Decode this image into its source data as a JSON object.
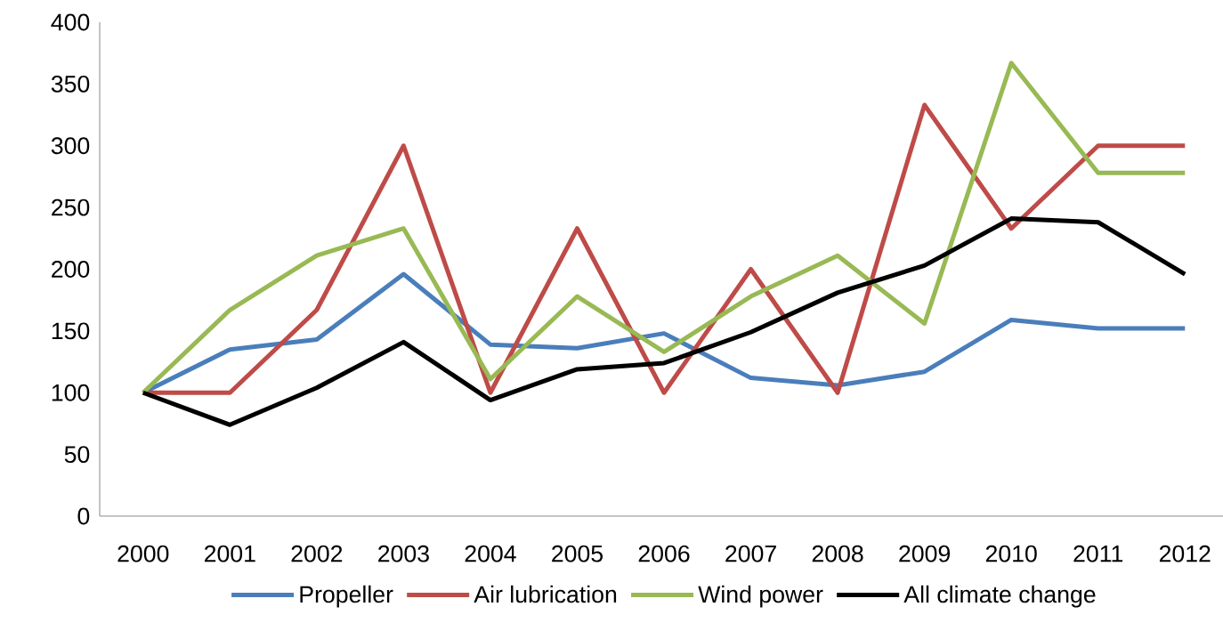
{
  "chart_data": {
    "type": "line",
    "categories": [
      "2000",
      "2001",
      "2002",
      "2003",
      "2004",
      "2005",
      "2006",
      "2007",
      "2008",
      "2009",
      "2010",
      "2011",
      "2012"
    ],
    "series": [
      {
        "name": "Propeller",
        "color": "#4a7ebb",
        "values": [
          100,
          135,
          143,
          196,
          139,
          136,
          148,
          112,
          106,
          117,
          159,
          152,
          152
        ]
      },
      {
        "name": "Air lubrication",
        "color": "#be4b48",
        "values": [
          100,
          100,
          167,
          300,
          100,
          233,
          100,
          200,
          100,
          333,
          233,
          300,
          300
        ]
      },
      {
        "name": "Wind power",
        "color": "#98b954",
        "values": [
          100,
          167,
          211,
          233,
          111,
          178,
          133,
          178,
          211,
          156,
          367,
          278,
          278
        ]
      },
      {
        "name": "All climate change",
        "color": "#000000",
        "values": [
          100,
          74,
          104,
          141,
          94,
          119,
          124,
          149,
          181,
          203,
          241,
          238,
          196
        ]
      }
    ],
    "ylim": [
      0,
      400
    ],
    "yticks": [
      0,
      50,
      100,
      150,
      200,
      250,
      300,
      350,
      400
    ],
    "grid": false,
    "legend": "bottom",
    "marker": "none",
    "line_style": "solid"
  }
}
